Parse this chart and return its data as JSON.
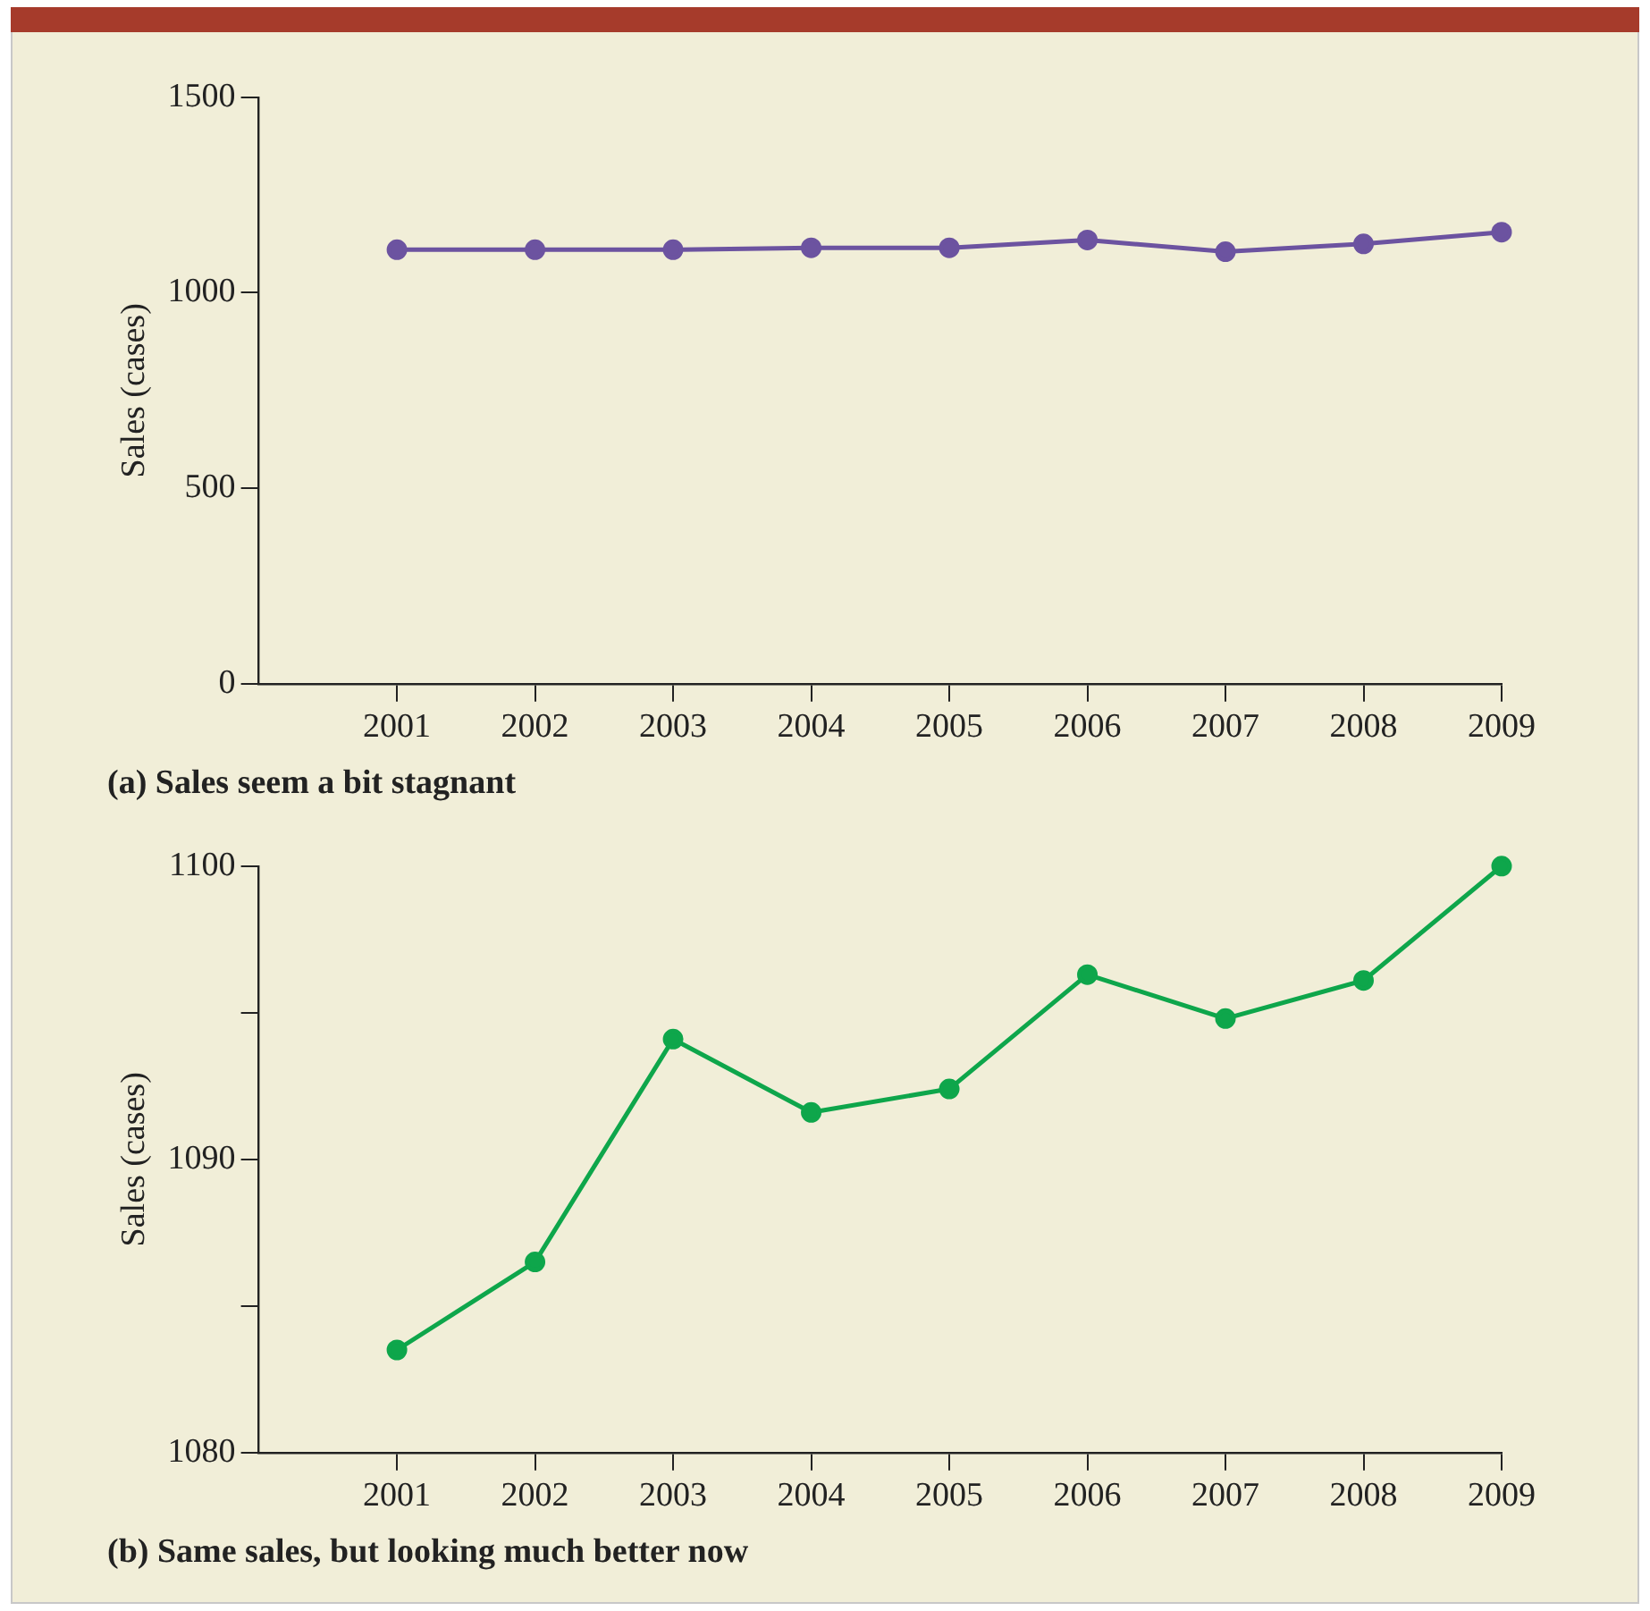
{
  "chart_data": [
    {
      "type": "line",
      "title": "(a) Sales seem a bit stagnant",
      "ylabel": "Sales (cases)",
      "x": [
        2001,
        2002,
        2003,
        2004,
        2005,
        2006,
        2007,
        2008,
        2009
      ],
      "xlim": [
        2000,
        2009
      ],
      "xticks": [
        2001,
        2002,
        2003,
        2004,
        2005,
        2006,
        2007,
        2008,
        2009
      ],
      "ylim": [
        0,
        1500
      ],
      "yticks": [
        0,
        500,
        1000,
        1500
      ],
      "marker": "circle",
      "line_style": "solid",
      "series": [
        {
          "color": "#6c53a0",
          "values": [
            1110,
            1110,
            1110,
            1115,
            1115,
            1135,
            1105,
            1125,
            1155
          ]
        }
      ]
    },
    {
      "type": "line",
      "title": "(b) Same sales, but looking much better now",
      "ylabel": "Sales (cases)",
      "x": [
        2001,
        2002,
        2003,
        2004,
        2005,
        2006,
        2007,
        2008,
        2009
      ],
      "xlim": [
        2000,
        2009
      ],
      "xticks": [
        2001,
        2002,
        2003,
        2004,
        2005,
        2006,
        2007,
        2008,
        2009
      ],
      "ylim": [
        1080,
        1100
      ],
      "yticks": [
        1080,
        {
          "value": 1085,
          "label": null
        },
        1090,
        {
          "value": 1095,
          "label": null
        },
        1100
      ],
      "marker": "circle",
      "line_style": "solid",
      "series": [
        {
          "color": "#0ea64b",
          "values": [
            1083.5,
            1086.5,
            1094.1,
            1091.6,
            1092.4,
            1096.3,
            1094.8,
            1096.1,
            1100
          ]
        }
      ]
    }
  ]
}
